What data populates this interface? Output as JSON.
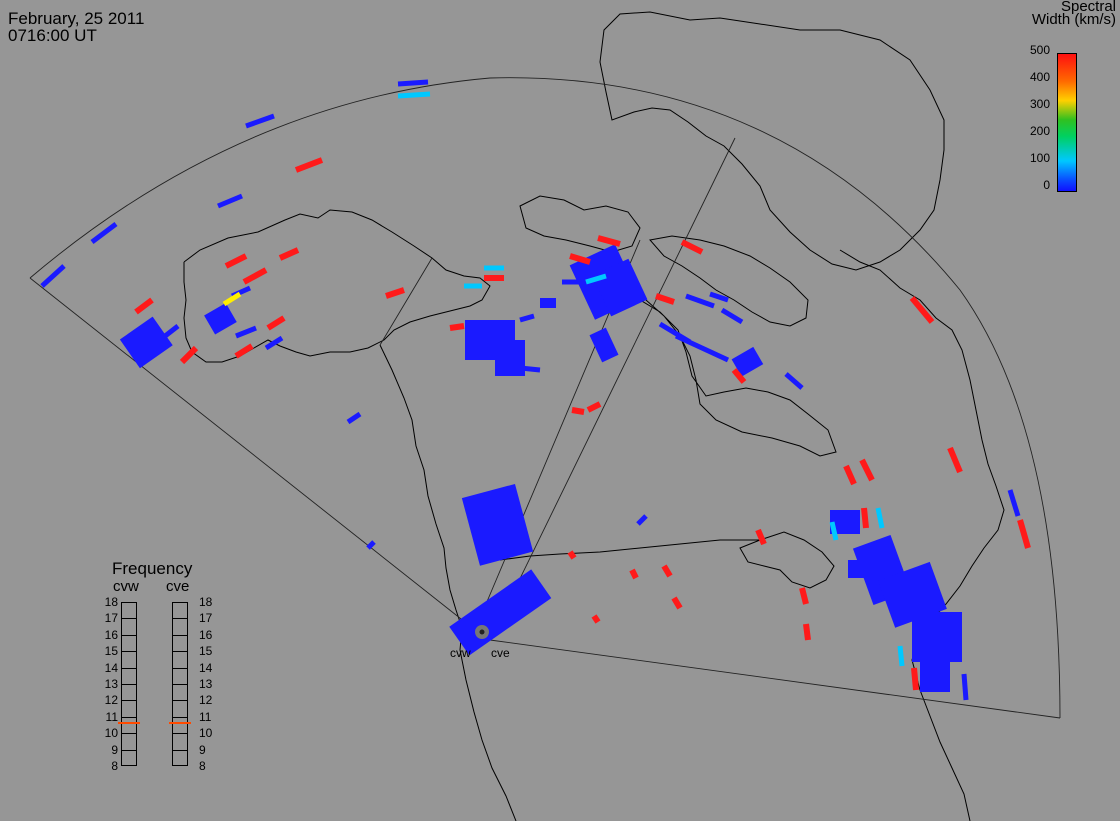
{
  "header": {
    "date": "February, 25 2011",
    "time": "0716:00 UT"
  },
  "colorbar": {
    "title_line1": "Spectral",
    "title_line2": "Width (km/s)",
    "ticks": [
      "500",
      "400",
      "300",
      "200",
      "100",
      "0"
    ]
  },
  "frequency_panel": {
    "title": "Frequency",
    "left_radar": "cvw",
    "right_radar": "cve",
    "scale": [
      "18",
      "17",
      "16",
      "15",
      "14",
      "13",
      "12",
      "11",
      "10",
      "9",
      "8"
    ],
    "cvw_value_mhz": 10.7,
    "cve_value_mhz": 10.7
  },
  "radars": {
    "west": "cvw",
    "east": "cve"
  },
  "colors": {
    "background": "#969696",
    "low": "#1a1aff",
    "mid": "#00c8ff",
    "high": "#ff1a1a",
    "freq_marker": "#ff4a00"
  }
}
